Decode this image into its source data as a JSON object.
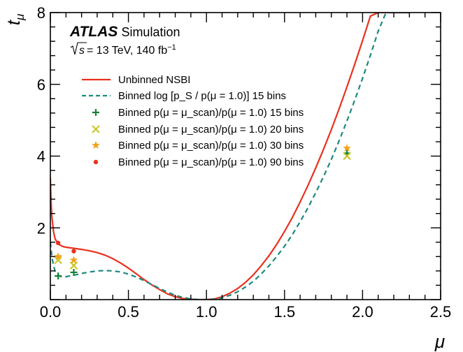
{
  "chart_data": {
    "type": "line",
    "experiment": "ATLAS",
    "experiment_tag": "Simulation",
    "energy_label_sqrt": "s",
    "energy_label_rest": " = 13 TeV, 140 fb",
    "energy_label_sup": "−1",
    "xlabel": "μ",
    "ylabel_main": "t",
    "ylabel_sub": "μ",
    "xlim": [
      0.0,
      2.5
    ],
    "ylim": [
      0.0,
      8.0
    ],
    "x_ticks": [
      0.0,
      0.5,
      1.0,
      1.5,
      2.0,
      2.5
    ],
    "x_tick_labels": [
      "0.0",
      "0.5",
      "1.0",
      "1.5",
      "2.0",
      "2.5"
    ],
    "y_ticks": [
      2,
      4,
      6,
      8
    ],
    "y_tick_labels": [
      "2",
      "4",
      "6",
      "8"
    ],
    "colors": {
      "unbinned": "#e8311f",
      "binned_log": "#1b8a7e",
      "bins15": "#17803a",
      "bins20": "#c9c82a",
      "bins30": "#f2a21c",
      "bins90": "#e8311f"
    },
    "legend": [
      {
        "id": "unbinned",
        "kind": "line",
        "label": "Unbinned NSBI"
      },
      {
        "id": "binned_log",
        "kind": "dashed",
        "label": "Binned log [p_S / p(μ = 1.0)] 15 bins"
      },
      {
        "id": "bins15",
        "kind": "plus",
        "label": "Binned p(μ = μ_scan)/p(μ = 1.0) 15 bins"
      },
      {
        "id": "bins20",
        "kind": "cross",
        "label": "Binned p(μ = μ_scan)/p(μ = 1.0) 20 bins"
      },
      {
        "id": "bins30",
        "kind": "star",
        "label": "Binned p(μ = μ_scan)/p(μ = 1.0) 30 bins"
      },
      {
        "id": "bins90",
        "kind": "dot",
        "label": "Binned p(μ = μ_scan)/p(μ = 1.0) 90 bins"
      }
    ],
    "series": [
      {
        "id": "unbinned",
        "name": "Unbinned NSBI",
        "style": "solid",
        "x": [
          0.0,
          0.005,
          0.01,
          0.02,
          0.03,
          0.05,
          0.08,
          0.1,
          0.15,
          0.2,
          0.25,
          0.3,
          0.35,
          0.4,
          0.45,
          0.5,
          0.55,
          0.6,
          0.65,
          0.7,
          0.75,
          0.8,
          0.85,
          0.9,
          0.95,
          1.0,
          1.05,
          1.1,
          1.15,
          1.2,
          1.25,
          1.3,
          1.35,
          1.4,
          1.45,
          1.5,
          1.55,
          1.6,
          1.65,
          1.7,
          1.75,
          1.8,
          1.85,
          1.9,
          1.95,
          2.0,
          2.05,
          2.1,
          2.15,
          2.2,
          2.25,
          2.3
        ],
        "y": [
          3.4,
          2.7,
          2.3,
          1.9,
          1.7,
          1.55,
          1.48,
          1.46,
          1.43,
          1.4,
          1.36,
          1.31,
          1.24,
          1.14,
          1.02,
          0.88,
          0.72,
          0.56,
          0.41,
          0.28,
          0.16,
          0.08,
          0.03,
          0.01,
          0.0,
          0.0,
          0.02,
          0.08,
          0.18,
          0.31,
          0.48,
          0.69,
          0.94,
          1.22,
          1.54,
          1.9,
          2.29,
          2.72,
          3.18,
          3.67,
          4.19,
          4.74,
          5.32,
          5.93,
          6.56,
          7.22,
          7.9,
          8.0,
          8.0,
          8.0,
          8.0,
          8.0
        ]
      },
      {
        "id": "binned_log",
        "name": "Binned log [p_S / p(μ = 1.0)] 15 bins",
        "style": "dashed",
        "x": [
          0.0,
          0.01,
          0.02,
          0.03,
          0.05,
          0.07,
          0.1,
          0.15,
          0.2,
          0.25,
          0.3,
          0.35,
          0.4,
          0.45,
          0.5,
          0.55,
          0.6,
          0.65,
          0.7,
          0.75,
          0.8,
          0.85,
          0.9,
          0.95,
          1.0,
          1.05,
          1.1,
          1.15,
          1.2,
          1.25,
          1.3,
          1.35,
          1.4,
          1.45,
          1.5,
          1.55,
          1.6,
          1.65,
          1.7,
          1.75,
          1.8,
          1.85,
          1.9,
          1.95,
          2.0,
          2.05,
          2.1,
          2.15,
          2.2,
          2.25,
          2.3
        ],
        "y": [
          1.6,
          1.2,
          0.95,
          0.8,
          0.68,
          0.64,
          0.64,
          0.68,
          0.73,
          0.77,
          0.8,
          0.81,
          0.8,
          0.77,
          0.71,
          0.63,
          0.53,
          0.42,
          0.31,
          0.21,
          0.12,
          0.06,
          0.02,
          0.0,
          0.0,
          0.01,
          0.05,
          0.12,
          0.22,
          0.35,
          0.51,
          0.71,
          0.94,
          1.2,
          1.49,
          1.81,
          2.17,
          2.56,
          2.98,
          3.43,
          3.91,
          4.43,
          4.98,
          5.56,
          6.17,
          6.81,
          7.48,
          8.0,
          8.0,
          8.0,
          8.0
        ]
      }
    ],
    "points": [
      {
        "id": "bins15",
        "x": [
          0.05,
          0.15,
          1.9
        ],
        "y": [
          0.66,
          0.76,
          4.08
        ]
      },
      {
        "id": "bins20",
        "x": [
          0.05,
          0.15,
          1.9
        ],
        "y": [
          1.1,
          0.95,
          4.0
        ]
      },
      {
        "id": "bins30",
        "x": [
          0.05,
          0.15,
          1.9
        ],
        "y": [
          1.2,
          1.1,
          4.22
        ]
      },
      {
        "id": "bins90",
        "x": [
          0.05,
          0.15
        ],
        "y": [
          1.58,
          1.35
        ]
      }
    ]
  }
}
